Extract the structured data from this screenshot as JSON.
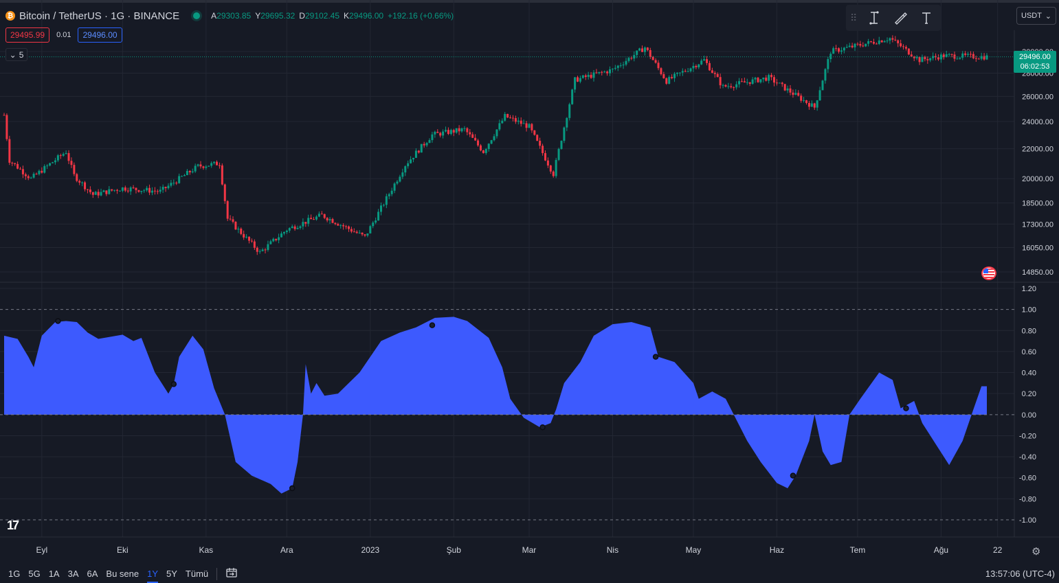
{
  "header": {
    "symbol_title": "Bitcoin / TetherUS · 1G · BINANCE",
    "ohlc": [
      {
        "label": "A",
        "value": "29303.85"
      },
      {
        "label": "Y",
        "value": "29695.32"
      },
      {
        "label": "D",
        "value": "29102.45"
      },
      {
        "label": "K",
        "value": "29496.00"
      }
    ],
    "change": "+192.16 (+0.66%)"
  },
  "order": {
    "bid": "29495.99",
    "spread": "0.01",
    "ask": "29496.00"
  },
  "collapse": {
    "count": "5"
  },
  "currency": {
    "label": "USDT"
  },
  "last_price": {
    "value": "29496.00",
    "countdown": "06:02:53"
  },
  "colors": {
    "up": "#089981",
    "down": "#f23645",
    "oscillator": "#3d5afe",
    "background": "#161a25",
    "grid": "#232733"
  },
  "icons": [
    "grip-icon",
    "cursor-text-icon",
    "brush-icon",
    "text-tool-icon",
    "chevron-down-icon",
    "gear-icon",
    "calendar-range-icon",
    "us-flag-icon",
    "tradingview-logo-icon"
  ],
  "bottom_bar": {
    "ranges": [
      "1G",
      "5G",
      "1A",
      "3A",
      "6A",
      "Bu sene",
      "1Y",
      "5Y",
      "Tümü"
    ],
    "active_range": "1Y",
    "clock": "13:57:06 (UTC-4)"
  },
  "chart_data": [
    {
      "type": "candlestick",
      "title": "Bitcoin / TetherUS · 1G · BINANCE",
      "y_scale": "log",
      "y_ticks": [
        "14850.00",
        "16050.00",
        "17300.00",
        "18500.00",
        "20000.00",
        "22000.00",
        "24000.00",
        "26000.00",
        "28000.00",
        "30000.00"
      ],
      "x_ticks": [
        "Eyl",
        "Eki",
        "Kas",
        "Ara",
        "2023",
        "Şub",
        "Mar",
        "Nis",
        "May",
        "Haz",
        "Tem",
        "Ağu",
        "22"
      ],
      "x_range": [
        "2022-08-18",
        "2023-08-18"
      ],
      "approx_close_path": [
        {
          "date": "2022-08-18",
          "close": 24500
        },
        {
          "date": "2022-08-20",
          "close": 21200
        },
        {
          "date": "2022-08-28",
          "close": 20000
        },
        {
          "date": "2022-09-10",
          "close": 21800
        },
        {
          "date": "2022-09-13",
          "close": 20200
        },
        {
          "date": "2022-09-20",
          "close": 19000
        },
        {
          "date": "2022-10-01",
          "close": 19400
        },
        {
          "date": "2022-10-15",
          "close": 19200
        },
        {
          "date": "2022-10-29",
          "close": 20800
        },
        {
          "date": "2022-11-06",
          "close": 21000
        },
        {
          "date": "2022-11-09",
          "close": 17600
        },
        {
          "date": "2022-11-21",
          "close": 15800
        },
        {
          "date": "2022-12-01",
          "close": 17000
        },
        {
          "date": "2022-12-14",
          "close": 17800
        },
        {
          "date": "2022-12-30",
          "close": 16600
        },
        {
          "date": "2023-01-14",
          "close": 20900
        },
        {
          "date": "2023-01-24",
          "close": 23000
        },
        {
          "date": "2023-02-05",
          "close": 23400
        },
        {
          "date": "2023-02-12",
          "close": 21800
        },
        {
          "date": "2023-02-20",
          "close": 24400
        },
        {
          "date": "2023-03-01",
          "close": 23600
        },
        {
          "date": "2023-03-10",
          "close": 20300
        },
        {
          "date": "2023-03-18",
          "close": 27400
        },
        {
          "date": "2023-04-01",
          "close": 28300
        },
        {
          "date": "2023-04-13",
          "close": 30400
        },
        {
          "date": "2023-04-21",
          "close": 27300
        },
        {
          "date": "2023-05-05",
          "close": 29200
        },
        {
          "date": "2023-05-12",
          "close": 26800
        },
        {
          "date": "2023-05-29",
          "close": 27600
        },
        {
          "date": "2023-06-10",
          "close": 25800
        },
        {
          "date": "2023-06-15",
          "close": 25100
        },
        {
          "date": "2023-06-21",
          "close": 30000
        },
        {
          "date": "2023-07-13",
          "close": 31300
        },
        {
          "date": "2023-07-24",
          "close": 29200
        },
        {
          "date": "2023-08-02",
          "close": 29600
        },
        {
          "date": "2023-08-18",
          "close": 29496
        }
      ]
    },
    {
      "type": "area",
      "y_ticks": [
        "1.20",
        "1.00",
        "0.80",
        "0.60",
        "0.40",
        "0.20",
        "0.00",
        "-0.20",
        "-0.40",
        "-0.60",
        "-0.80",
        "-1.00"
      ],
      "ylim": [
        -1.0,
        1.2
      ],
      "reference_lines": [
        1.0,
        0.0,
        -1.0
      ],
      "points": [
        {
          "date": "2022-08-18",
          "value": 0.75
        },
        {
          "date": "2022-08-23",
          "value": 0.72
        },
        {
          "date": "2022-08-27",
          "value": 0.55
        },
        {
          "date": "2022-08-29",
          "value": 0.45
        },
        {
          "date": "2022-09-01",
          "value": 0.75
        },
        {
          "date": "2022-09-06",
          "value": 0.88
        },
        {
          "date": "2022-09-10",
          "value": 0.89
        },
        {
          "date": "2022-09-14",
          "value": 0.88
        },
        {
          "date": "2022-09-18",
          "value": 0.78
        },
        {
          "date": "2022-09-22",
          "value": 0.72
        },
        {
          "date": "2022-10-01",
          "value": 0.76
        },
        {
          "date": "2022-10-05",
          "value": 0.7
        },
        {
          "date": "2022-10-08",
          "value": 0.73
        },
        {
          "date": "2022-10-13",
          "value": 0.4
        },
        {
          "date": "2022-10-18",
          "value": 0.2
        },
        {
          "date": "2022-10-20",
          "value": 0.29
        },
        {
          "date": "2022-10-22",
          "value": 0.55
        },
        {
          "date": "2022-10-27",
          "value": 0.75
        },
        {
          "date": "2022-10-31",
          "value": 0.62
        },
        {
          "date": "2022-11-04",
          "value": 0.25
        },
        {
          "date": "2022-11-08",
          "value": 0.0
        },
        {
          "date": "2022-11-12",
          "value": -0.45
        },
        {
          "date": "2022-11-18",
          "value": -0.58
        },
        {
          "date": "2022-11-25",
          "value": -0.66
        },
        {
          "date": "2022-11-29",
          "value": -0.75
        },
        {
          "date": "2022-12-03",
          "value": -0.7
        },
        {
          "date": "2022-12-05",
          "value": -0.45
        },
        {
          "date": "2022-12-07",
          "value": 0.0
        },
        {
          "date": "2022-12-08",
          "value": 0.48
        },
        {
          "date": "2022-12-10",
          "value": 0.2
        },
        {
          "date": "2022-12-12",
          "value": 0.3
        },
        {
          "date": "2022-12-15",
          "value": 0.18
        },
        {
          "date": "2022-12-20",
          "value": 0.2
        },
        {
          "date": "2022-12-28",
          "value": 0.4
        },
        {
          "date": "2023-01-05",
          "value": 0.7
        },
        {
          "date": "2023-01-12",
          "value": 0.78
        },
        {
          "date": "2023-01-18",
          "value": 0.83
        },
        {
          "date": "2023-01-25",
          "value": 0.92
        },
        {
          "date": "2023-02-01",
          "value": 0.93
        },
        {
          "date": "2023-02-06",
          "value": 0.89
        },
        {
          "date": "2023-02-14",
          "value": 0.73
        },
        {
          "date": "2023-02-19",
          "value": 0.45
        },
        {
          "date": "2023-02-22",
          "value": 0.15
        },
        {
          "date": "2023-02-27",
          "value": -0.03
        },
        {
          "date": "2023-03-05",
          "value": -0.12
        },
        {
          "date": "2023-03-09",
          "value": -0.08
        },
        {
          "date": "2023-03-11",
          "value": 0.05
        },
        {
          "date": "2023-03-14",
          "value": 0.3
        },
        {
          "date": "2023-03-20",
          "value": 0.5
        },
        {
          "date": "2023-03-25",
          "value": 0.75
        },
        {
          "date": "2023-04-01",
          "value": 0.86
        },
        {
          "date": "2023-04-08",
          "value": 0.88
        },
        {
          "date": "2023-04-15",
          "value": 0.83
        },
        {
          "date": "2023-04-18",
          "value": 0.55
        },
        {
          "date": "2023-04-24",
          "value": 0.5
        },
        {
          "date": "2023-05-01",
          "value": 0.3
        },
        {
          "date": "2023-05-03",
          "value": 0.15
        },
        {
          "date": "2023-05-08",
          "value": 0.22
        },
        {
          "date": "2023-05-13",
          "value": 0.15
        },
        {
          "date": "2023-05-16",
          "value": 0.0
        },
        {
          "date": "2023-05-21",
          "value": -0.25
        },
        {
          "date": "2023-05-26",
          "value": -0.45
        },
        {
          "date": "2023-06-01",
          "value": -0.65
        },
        {
          "date": "2023-06-05",
          "value": -0.7
        },
        {
          "date": "2023-06-08",
          "value": -0.58
        },
        {
          "date": "2023-06-13",
          "value": -0.25
        },
        {
          "date": "2023-06-15",
          "value": 0.0
        },
        {
          "date": "2023-06-18",
          "value": -0.35
        },
        {
          "date": "2023-06-21",
          "value": -0.48
        },
        {
          "date": "2023-06-25",
          "value": -0.45
        },
        {
          "date": "2023-06-28",
          "value": 0.0
        },
        {
          "date": "2023-07-02",
          "value": 0.15
        },
        {
          "date": "2023-07-09",
          "value": 0.4
        },
        {
          "date": "2023-07-14",
          "value": 0.33
        },
        {
          "date": "2023-07-17",
          "value": 0.06
        },
        {
          "date": "2023-07-22",
          "value": 0.13
        },
        {
          "date": "2023-07-25",
          "value": -0.08
        },
        {
          "date": "2023-07-30",
          "value": -0.28
        },
        {
          "date": "2023-08-04",
          "value": -0.48
        },
        {
          "date": "2023-08-09",
          "value": -0.25
        },
        {
          "date": "2023-08-13",
          "value": 0.05
        },
        {
          "date": "2023-08-16",
          "value": 0.27
        },
        {
          "date": "2023-08-18",
          "value": 0.27
        }
      ],
      "markers": [
        {
          "date": "2022-09-07",
          "value": 0.89
        },
        {
          "date": "2022-10-20",
          "value": 0.29
        },
        {
          "date": "2022-12-03",
          "value": -0.7
        },
        {
          "date": "2023-01-24",
          "value": 0.85
        },
        {
          "date": "2023-03-06",
          "value": -0.12
        },
        {
          "date": "2023-04-17",
          "value": 0.55
        },
        {
          "date": "2023-06-07",
          "value": -0.58
        },
        {
          "date": "2023-07-19",
          "value": 0.06
        }
      ]
    }
  ]
}
